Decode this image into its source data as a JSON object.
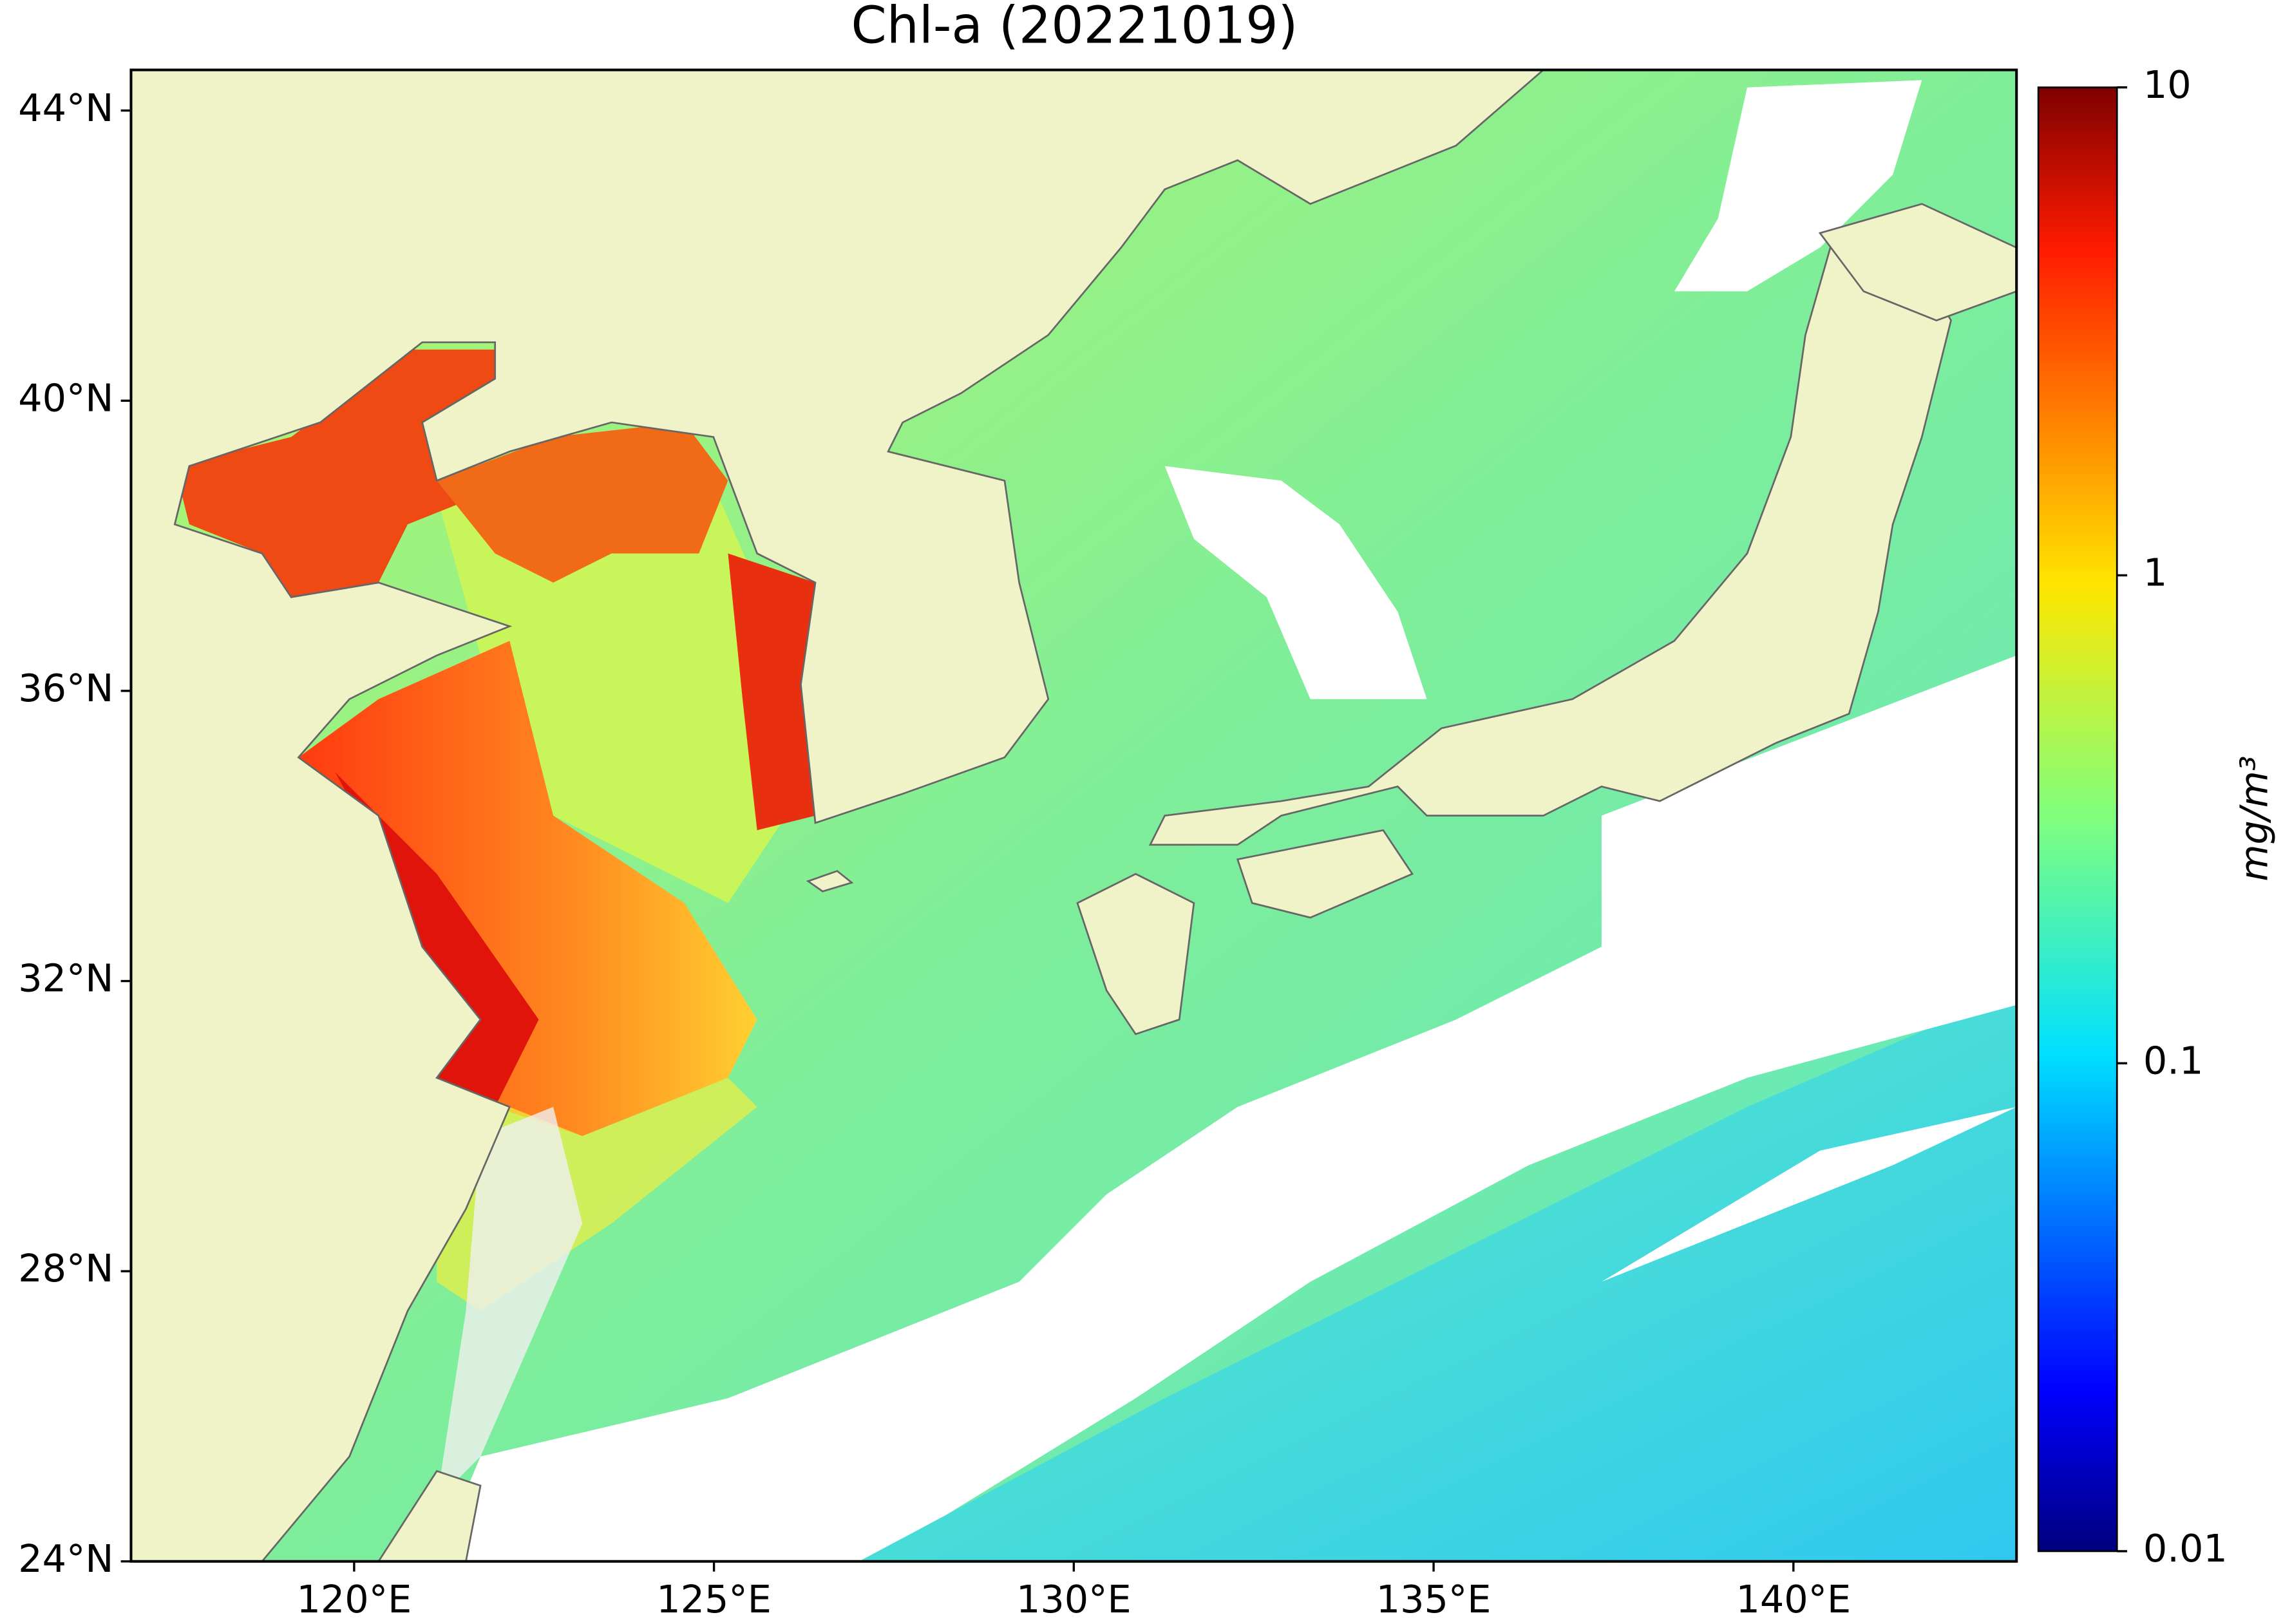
{
  "map": {
    "title": "Chl-a (20221019)",
    "xlim": [
      116.9,
      143.1
    ],
    "ylim": [
      24,
      44.56
    ],
    "xticks": [
      {
        "value": 120,
        "label": "120°E"
      },
      {
        "value": 125,
        "label": "125°E"
      },
      {
        "value": 130,
        "label": "130°E"
      },
      {
        "value": 135,
        "label": "135°E"
      },
      {
        "value": 140,
        "label": "140°E"
      }
    ],
    "yticks": [
      {
        "value": 24,
        "label": "24°N"
      },
      {
        "value": 28,
        "label": "28°N"
      },
      {
        "value": 32,
        "label": "32°N"
      },
      {
        "value": 36,
        "label": "36°N"
      },
      {
        "value": 40,
        "label": "40°N"
      },
      {
        "value": 44,
        "label": "44°N"
      }
    ],
    "colorbar": {
      "label": "mg/m³",
      "lim": [
        0.01,
        10
      ],
      "log": true,
      "ticks": [
        0.01,
        0.1,
        1,
        10
      ]
    }
  }
}
